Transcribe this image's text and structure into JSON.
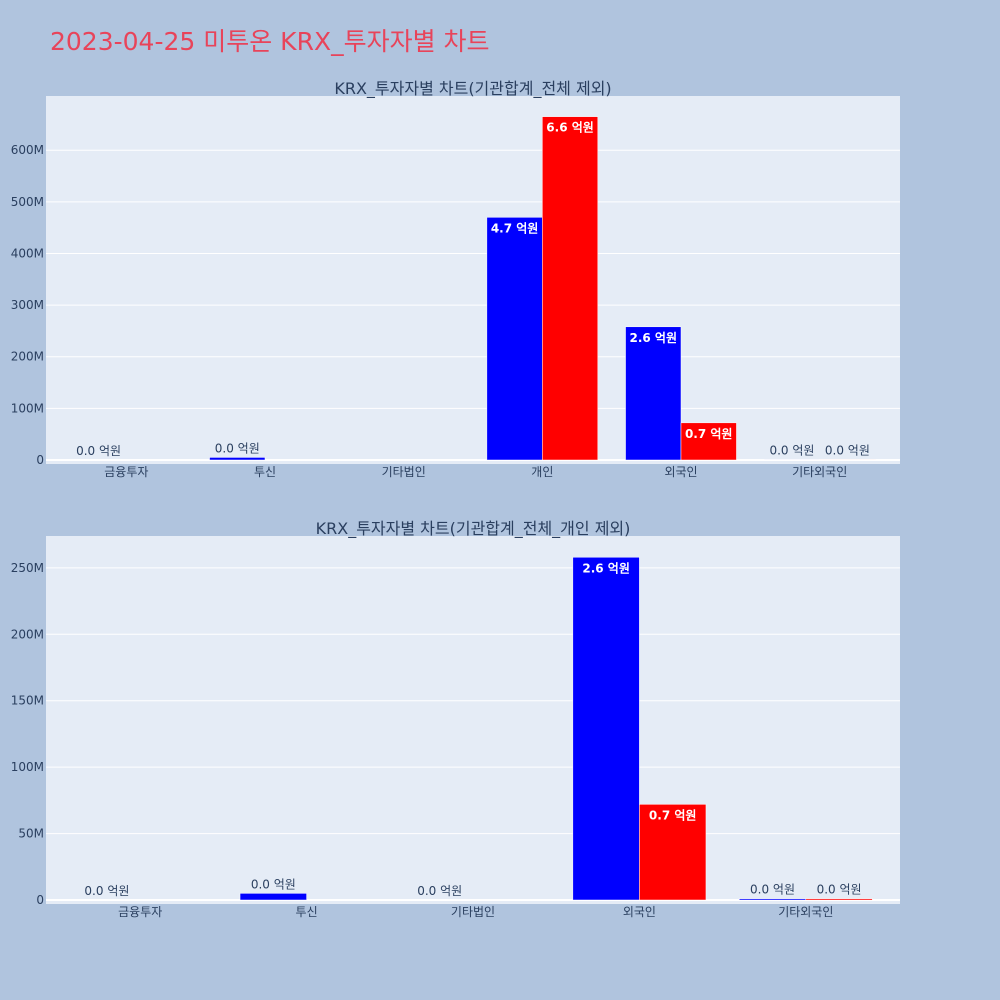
{
  "title": "2023-04-25 미투온 KRX_투자자별 차트",
  "colors": {
    "series1": "#0000ff",
    "series2": "#ff0000",
    "plot_bg": "#e5ecf6",
    "page_bg": "#b0c4de",
    "title": "#e8445a"
  },
  "chart_data": [
    {
      "type": "bar",
      "title": "KRX_투자자별 차트(기관합계_전체 제외)",
      "categories": [
        "금융투자",
        "투신",
        "기타법인",
        "개인",
        "외국인",
        "기타외국인"
      ],
      "series": [
        {
          "values": [
            0,
            5000000,
            0,
            470000000,
            258000000,
            1000000
          ],
          "labels": [
            "0.0 억원",
            "0.0 억원",
            "",
            "4.7 억원",
            "2.6 억원",
            "0.0 억원"
          ]
        },
        {
          "values": [
            0,
            0,
            0,
            665000000,
            72000000,
            1000000
          ],
          "labels": [
            "",
            "",
            "",
            "6.6 억원",
            "0.7 억원",
            "0.0 억원"
          ]
        }
      ],
      "yticks": [
        0,
        100000000,
        200000000,
        300000000,
        400000000,
        500000000,
        600000000
      ],
      "ytick_labels": [
        "0",
        "100M",
        "200M",
        "300M",
        "400M",
        "500M",
        "600M"
      ],
      "ylim": [
        0,
        705000000
      ],
      "grid": true
    },
    {
      "type": "bar",
      "title": "KRX_투자자별 차트(기관합계_전체_개인 제외)",
      "categories": [
        "금융투자",
        "투신",
        "기타법인",
        "외국인",
        "기타외국인"
      ],
      "series": [
        {
          "values": [
            0,
            5000000,
            0,
            258000000,
            1000000
          ],
          "labels": [
            "0.0 억원",
            "0.0 억원",
            "0.0 억원",
            "2.6 억원",
            "0.0 억원"
          ]
        },
        {
          "values": [
            0,
            0,
            0,
            72000000,
            1000000
          ],
          "labels": [
            "",
            "",
            "",
            "0.7 억원",
            "0.0 억원"
          ]
        }
      ],
      "yticks": [
        0,
        50000000,
        100000000,
        150000000,
        200000000,
        250000000
      ],
      "ytick_labels": [
        "0",
        "50M",
        "100M",
        "150M",
        "200M",
        "250M"
      ],
      "ylim": [
        0,
        274000000
      ],
      "grid": true
    }
  ]
}
